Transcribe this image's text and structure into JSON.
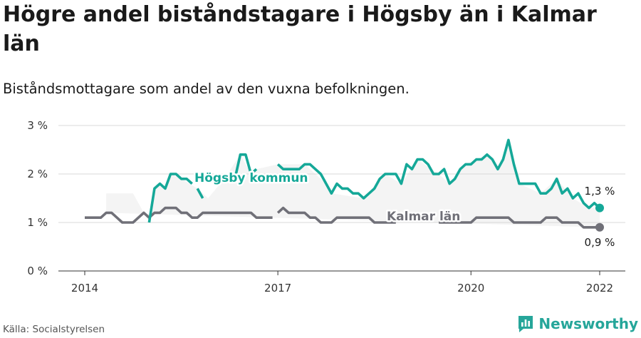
{
  "title": "Högre andel biståndstagare i Högsby än i Kalmar län",
  "subtitle": "Biståndsmottagare som andel av den vuxna befolkningen.",
  "source": "Källa: Socialstyrelsen",
  "brand": {
    "name": "Newsworthy",
    "icon": "newsworthy-logo-icon",
    "color": "#26a69a"
  },
  "colors": {
    "hogsby": "#15a898",
    "kalmar": "#707078",
    "band": "#f4f4f4",
    "grid": "#d9d9d9"
  },
  "chart_data": {
    "type": "line",
    "title": "Högre andel biståndstagare i Högsby än i Kalmar län",
    "subtitle": "Biståndsmottagare som andel av den vuxna befolkningen.",
    "xlabel": "",
    "ylabel": "",
    "x_range": [
      2013.75,
      2022.35
    ],
    "ylim": [
      0,
      3
    ],
    "x_ticks": [
      2014,
      2017,
      2020,
      2022
    ],
    "x_tick_labels": [
      "2014",
      "2017",
      "2020",
      "2022"
    ],
    "y_ticks": [
      0,
      1,
      2,
      3
    ],
    "y_tick_labels": [
      "0 %",
      "1 %",
      "2 %",
      "3 %"
    ],
    "grid": true,
    "series": [
      {
        "name": "Högsby kommun",
        "color": "#15a898",
        "label": "Högsby kommun",
        "end_label": "1,3 %",
        "segments": [
          [
            [
              2015.0,
              1.0
            ],
            [
              2015.083,
              1.7
            ],
            [
              2015.167,
              1.8
            ],
            [
              2015.25,
              1.7
            ],
            [
              2015.333,
              2.0
            ],
            [
              2015.417,
              2.0
            ],
            [
              2015.5,
              1.9
            ],
            [
              2015.583,
              1.9
            ],
            [
              2015.667,
              1.8
            ]
          ],
          [
            [
              2015.75,
              1.7
            ],
            [
              2015.833,
              1.5
            ]
          ],
          [
            [
              2016.0,
              1.9
            ],
            [
              2016.083,
              1.9
            ]
          ],
          [
            [
              2016.333,
              1.9
            ],
            [
              2016.417,
              2.4
            ],
            [
              2016.5,
              2.4
            ],
            [
              2016.583,
              2.0
            ],
            [
              2016.667,
              2.1
            ]
          ],
          [
            [
              2017.0,
              2.2
            ],
            [
              2017.083,
              2.1
            ],
            [
              2017.167,
              2.1
            ],
            [
              2017.25,
              2.1
            ],
            [
              2017.333,
              2.1
            ],
            [
              2017.417,
              2.2
            ],
            [
              2017.5,
              2.2
            ],
            [
              2017.583,
              2.1
            ],
            [
              2017.667,
              2.0
            ],
            [
              2017.75,
              1.8
            ],
            [
              2017.833,
              1.6
            ],
            [
              2017.917,
              1.8
            ],
            [
              2018.0,
              1.7
            ],
            [
              2018.083,
              1.7
            ],
            [
              2018.167,
              1.6
            ],
            [
              2018.25,
              1.6
            ],
            [
              2018.333,
              1.5
            ],
            [
              2018.417,
              1.6
            ],
            [
              2018.5,
              1.7
            ],
            [
              2018.583,
              1.9
            ],
            [
              2018.667,
              2.0
            ],
            [
              2018.75,
              2.0
            ],
            [
              2018.833,
              2.0
            ],
            [
              2018.917,
              1.8
            ],
            [
              2019.0,
              2.2
            ],
            [
              2019.083,
              2.1
            ],
            [
              2019.167,
              2.3
            ],
            [
              2019.25,
              2.3
            ],
            [
              2019.333,
              2.2
            ],
            [
              2019.417,
              2.0
            ],
            [
              2019.5,
              2.0
            ],
            [
              2019.583,
              2.1
            ],
            [
              2019.667,
              1.8
            ],
            [
              2019.75,
              1.9
            ],
            [
              2019.833,
              2.1
            ],
            [
              2019.917,
              2.2
            ],
            [
              2020.0,
              2.2
            ],
            [
              2020.083,
              2.3
            ],
            [
              2020.167,
              2.3
            ],
            [
              2020.25,
              2.4
            ],
            [
              2020.333,
              2.3
            ],
            [
              2020.417,
              2.1
            ],
            [
              2020.5,
              2.3
            ],
            [
              2020.583,
              2.7
            ],
            [
              2020.667,
              2.2
            ],
            [
              2020.75,
              1.8
            ],
            [
              2020.833,
              1.8
            ],
            [
              2020.917,
              1.8
            ],
            [
              2021.0,
              1.8
            ],
            [
              2021.083,
              1.6
            ],
            [
              2021.167,
              1.6
            ],
            [
              2021.25,
              1.7
            ],
            [
              2021.333,
              1.9
            ],
            [
              2021.417,
              1.6
            ],
            [
              2021.5,
              1.7
            ],
            [
              2021.583,
              1.5
            ],
            [
              2021.667,
              1.6
            ],
            [
              2021.75,
              1.4
            ],
            [
              2021.833,
              1.3
            ],
            [
              2021.917,
              1.4
            ],
            [
              2022.0,
              1.3
            ]
          ]
        ]
      },
      {
        "name": "Kalmar län",
        "color": "#707078",
        "label": "Kalmar län",
        "end_label": "0,9 %",
        "segments": [
          [
            [
              2014.0,
              1.1
            ],
            [
              2014.083,
              1.1
            ],
            [
              2014.167,
              1.1
            ],
            [
              2014.25,
              1.1
            ],
            [
              2014.333,
              1.2
            ],
            [
              2014.417,
              1.2
            ],
            [
              2014.5,
              1.1
            ],
            [
              2014.583,
              1.0
            ],
            [
              2014.667,
              1.0
            ],
            [
              2014.75,
              1.0
            ],
            [
              2014.833,
              1.1
            ],
            [
              2014.917,
              1.2
            ],
            [
              2015.0,
              1.1
            ],
            [
              2015.083,
              1.2
            ],
            [
              2015.167,
              1.2
            ],
            [
              2015.25,
              1.3
            ],
            [
              2015.333,
              1.3
            ],
            [
              2015.417,
              1.3
            ],
            [
              2015.5,
              1.2
            ],
            [
              2015.583,
              1.2
            ],
            [
              2015.667,
              1.1
            ],
            [
              2015.75,
              1.1
            ],
            [
              2015.833,
              1.2
            ],
            [
              2015.917,
              1.2
            ],
            [
              2016.0,
              1.2
            ],
            [
              2016.083,
              1.2
            ],
            [
              2016.167,
              1.2
            ],
            [
              2016.25,
              1.2
            ],
            [
              2016.333,
              1.2
            ],
            [
              2016.417,
              1.2
            ],
            [
              2016.5,
              1.2
            ],
            [
              2016.583,
              1.2
            ],
            [
              2016.667,
              1.1
            ],
            [
              2016.75,
              1.1
            ],
            [
              2016.833,
              1.1
            ],
            [
              2016.917,
              1.1
            ]
          ],
          [
            [
              2017.0,
              1.2
            ],
            [
              2017.083,
              1.3
            ],
            [
              2017.167,
              1.2
            ],
            [
              2017.25,
              1.2
            ],
            [
              2017.333,
              1.2
            ],
            [
              2017.417,
              1.2
            ],
            [
              2017.5,
              1.1
            ],
            [
              2017.583,
              1.1
            ],
            [
              2017.667,
              1.0
            ],
            [
              2017.75,
              1.0
            ],
            [
              2017.833,
              1.0
            ],
            [
              2017.917,
              1.1
            ],
            [
              2018.0,
              1.1
            ],
            [
              2018.083,
              1.1
            ],
            [
              2018.167,
              1.1
            ],
            [
              2018.25,
              1.1
            ],
            [
              2018.333,
              1.1
            ],
            [
              2018.417,
              1.1
            ],
            [
              2018.5,
              1.0
            ],
            [
              2018.583,
              1.0
            ],
            [
              2018.667,
              1.0
            ],
            [
              2018.75,
              1.0
            ],
            [
              2018.833,
              1.0
            ]
          ],
          [
            [
              2019.5,
              1.0
            ],
            [
              2019.583,
              1.0
            ],
            [
              2019.667,
              1.0
            ],
            [
              2019.75,
              1.0
            ],
            [
              2019.833,
              1.0
            ],
            [
              2019.917,
              1.0
            ],
            [
              2020.0,
              1.0
            ],
            [
              2020.083,
              1.1
            ],
            [
              2020.167,
              1.1
            ],
            [
              2020.25,
              1.1
            ],
            [
              2020.333,
              1.1
            ],
            [
              2020.417,
              1.1
            ],
            [
              2020.5,
              1.1
            ],
            [
              2020.583,
              1.1
            ],
            [
              2020.667,
              1.0
            ],
            [
              2020.75,
              1.0
            ],
            [
              2020.833,
              1.0
            ],
            [
              2020.917,
              1.0
            ],
            [
              2021.0,
              1.0
            ],
            [
              2021.083,
              1.0
            ],
            [
              2021.167,
              1.1
            ],
            [
              2021.25,
              1.1
            ],
            [
              2021.333,
              1.1
            ],
            [
              2021.417,
              1.0
            ],
            [
              2021.5,
              1.0
            ],
            [
              2021.583,
              1.0
            ],
            [
              2021.667,
              1.0
            ],
            [
              2021.75,
              0.9
            ],
            [
              2021.833,
              0.9
            ],
            [
              2021.917,
              0.9
            ],
            [
              2022.0,
              0.9
            ]
          ]
        ]
      }
    ],
    "shaded_band": [
      [
        2014.333,
        1.6
      ],
      [
        2014.75,
        1.6
      ],
      [
        2015.0,
        1.0
      ],
      [
        2015.083,
        1.7
      ],
      [
        2015.167,
        1.8
      ],
      [
        2015.25,
        1.7
      ],
      [
        2015.333,
        2.0
      ],
      [
        2015.5,
        1.9
      ],
      [
        2015.75,
        1.7
      ],
      [
        2015.917,
        1.5
      ],
      [
        2016.167,
        1.9
      ],
      [
        2016.417,
        2.4
      ],
      [
        2016.583,
        2.0
      ],
      [
        2016.667,
        2.1
      ],
      [
        2017.0,
        2.2
      ],
      [
        2017.417,
        2.2
      ],
      [
        2017.75,
        1.8
      ],
      [
        2017.833,
        1.6
      ],
      [
        2018.333,
        1.5
      ],
      [
        2018.667,
        2.0
      ],
      [
        2018.917,
        1.8
      ],
      [
        2019.167,
        2.3
      ],
      [
        2019.5,
        2.0
      ],
      [
        2019.667,
        1.8
      ],
      [
        2019.917,
        2.2
      ],
      [
        2020.25,
        2.4
      ],
      [
        2020.417,
        2.1
      ],
      [
        2020.583,
        2.7
      ],
      [
        2020.75,
        1.8
      ],
      [
        2021.083,
        1.6
      ],
      [
        2021.333,
        1.9
      ],
      [
        2021.583,
        1.5
      ],
      [
        2021.833,
        1.3
      ],
      [
        2022.0,
        1.3
      ]
    ]
  }
}
